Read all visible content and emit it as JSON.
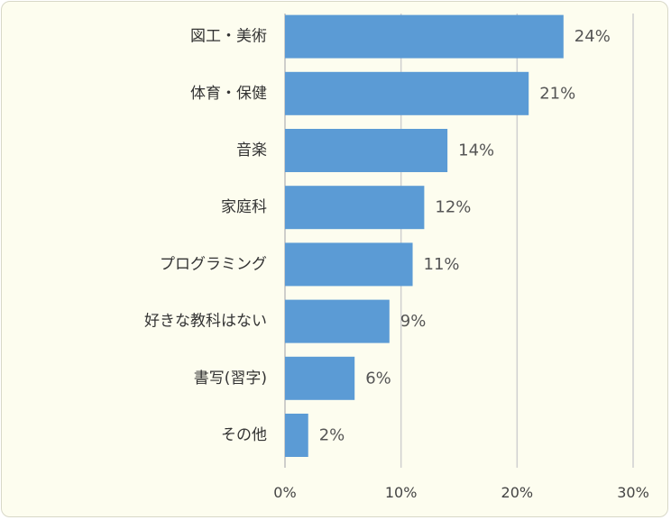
{
  "chart_data": {
    "type": "bar",
    "orientation": "horizontal",
    "categories": [
      "図工・美術",
      "体育・保健",
      "音楽",
      "家庭科",
      "プログラミング",
      "好きな教科はない",
      "書写(習字)",
      "その他"
    ],
    "values": [
      24,
      21,
      14,
      12,
      11,
      9,
      6,
      2
    ],
    "value_labels": [
      "24%",
      "21%",
      "14%",
      "12%",
      "11%",
      "9%",
      "6%",
      "2%"
    ],
    "x_ticks": [
      "0%",
      "10%",
      "20%",
      "30%"
    ],
    "x_tick_values": [
      0,
      10,
      20,
      30
    ],
    "xlim": [
      0,
      30
    ],
    "title": "",
    "xlabel": "",
    "ylabel": "",
    "grid": true,
    "bar_color": "#5b9bd5",
    "background_color": "#fdfdef"
  }
}
